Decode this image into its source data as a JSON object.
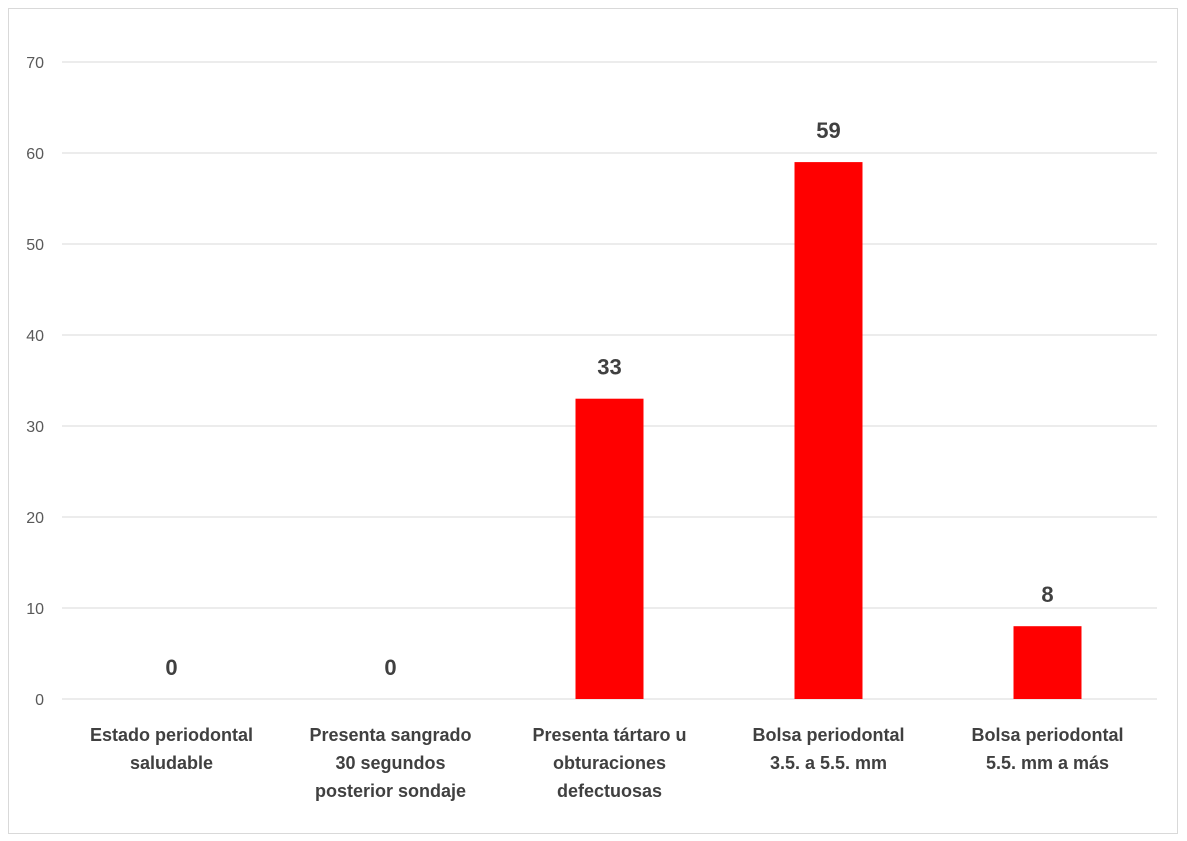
{
  "chart_data": {
    "type": "bar",
    "categories": [
      [
        "Estado periodontal",
        "saludable"
      ],
      [
        "Presenta sangrado",
        "30 segundos",
        "posterior sondaje"
      ],
      [
        "Presenta tártaro u",
        "obturaciones",
        "defectuosas"
      ],
      [
        "Bolsa periodontal",
        "3.5. a 5.5. mm"
      ],
      [
        "Bolsa periodontal",
        "5.5. mm a más"
      ]
    ],
    "values": [
      0,
      0,
      33,
      59,
      8
    ],
    "data_labels": [
      "0",
      "0",
      "33",
      "59",
      "8"
    ],
    "title": "",
    "xlabel": "",
    "ylabel": "",
    "ylim": [
      0,
      70
    ],
    "yticks": [
      0,
      10,
      20,
      30,
      40,
      50,
      60,
      70
    ],
    "grid": true,
    "legend": "none",
    "bar_color": "#ff0000",
    "grid_color": "#d9d9d9"
  }
}
